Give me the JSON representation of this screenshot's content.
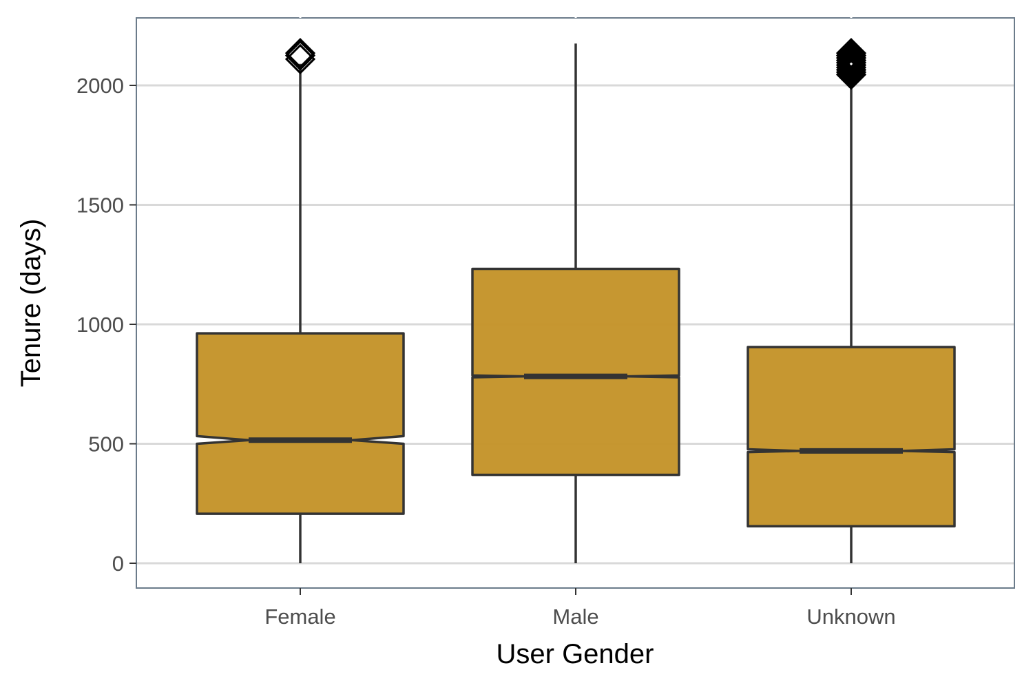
{
  "chart_data": {
    "type": "boxplot",
    "notched": true,
    "xlabel": "User Gender",
    "ylabel": "Tenure (days)",
    "categories": [
      "Female",
      "Male",
      "Unknown"
    ],
    "ylim": [
      -100,
      2280
    ],
    "yticks": [
      0,
      500,
      1000,
      1500,
      2000
    ],
    "grid": {
      "horizontal": true,
      "vertical": false
    },
    "legend": "none",
    "colors": {
      "box_fill": "#c4942a",
      "box_stroke": "#333333",
      "grid": "#d9d9d9",
      "panel_border": "#6b7b8a",
      "outlier": "#000000"
    },
    "boxes": [
      {
        "category": "Female",
        "whisker_low": 0,
        "q1": 207,
        "median": 515,
        "q3": 962,
        "whisker_high": 2090,
        "notch_low": 500,
        "notch_high": 532,
        "outliers": [
          2110,
          2125,
          2135
        ]
      },
      {
        "category": "Male",
        "whisker_low": 0,
        "q1": 370,
        "median": 782,
        "q3": 1232,
        "whisker_high": 2175,
        "notch_low": 778,
        "notch_high": 786,
        "outliers": []
      },
      {
        "category": "Unknown",
        "whisker_low": 0,
        "q1": 155,
        "median": 470,
        "q3": 905,
        "whisker_high": 2035,
        "notch_low": 465,
        "notch_high": 477,
        "outliers": [
          2045,
          2055,
          2065,
          2075,
          2085,
          2095,
          2105,
          2115,
          2125,
          2135
        ]
      }
    ]
  }
}
